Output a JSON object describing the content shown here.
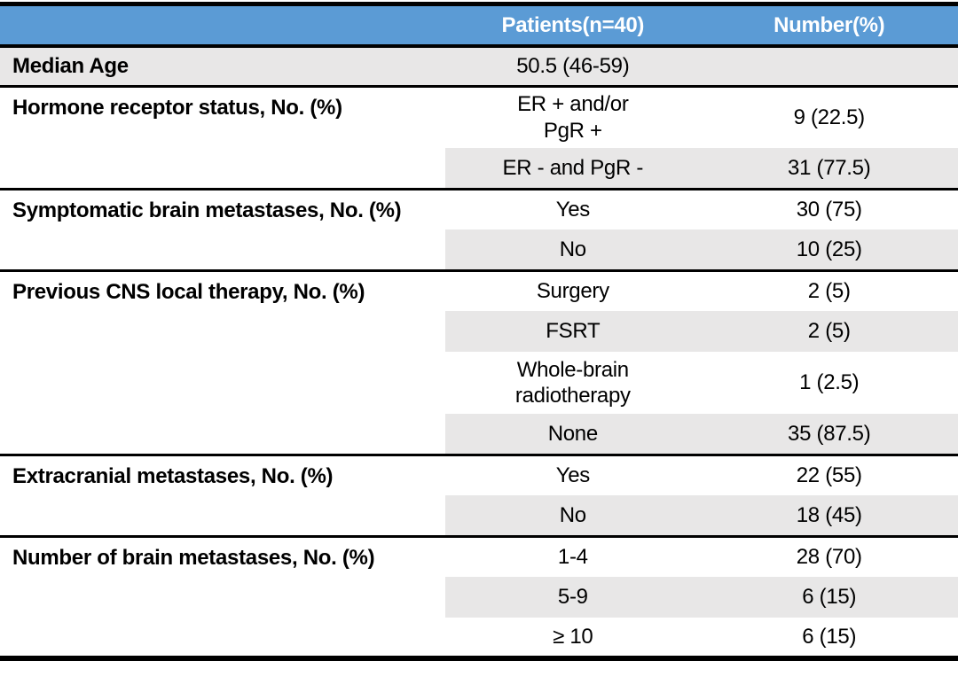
{
  "colors": {
    "header_bg": "#5b9bd5",
    "header_fg": "#ffffff",
    "shade": "#e8e7e7",
    "rule": "#000000"
  },
  "header": {
    "col_patients": "Patients(n=40)",
    "col_number": "Number(%)"
  },
  "table": {
    "median_row": {
      "label": "Median Age",
      "value": "50.5 (46-59)",
      "number": ""
    },
    "sections": [
      {
        "label": "Hormone receptor status, No. (%)",
        "rows": [
          {
            "option": "ER + and/or\nPgR +",
            "number": "9 (22.5)"
          },
          {
            "option": "ER - and PgR -",
            "number": "31 (77.5)"
          }
        ]
      },
      {
        "label": "Symptomatic brain metastases, No. (%)",
        "rows": [
          {
            "option": "Yes",
            "number": "30 (75)"
          },
          {
            "option": "No",
            "number": "10 (25)"
          }
        ]
      },
      {
        "label": "Previous CNS local therapy, No. (%)",
        "rows": [
          {
            "option": "Surgery",
            "number": "2 (5)"
          },
          {
            "option": "FSRT",
            "number": "2 (5)"
          },
          {
            "option": "Whole-brain\nradiotherapy",
            "number": "1 (2.5)"
          },
          {
            "option": "None",
            "number": "35 (87.5)"
          }
        ]
      },
      {
        "label": "Extracranial metastases, No. (%)",
        "rows": [
          {
            "option": "Yes",
            "number": "22 (55)"
          },
          {
            "option": "No",
            "number": "18 (45)"
          }
        ]
      },
      {
        "label": "Number of brain metastases, No. (%)",
        "rows": [
          {
            "option": "1-4",
            "number": "28 (70)"
          },
          {
            "option": "5-9",
            "number": "6 (15)"
          },
          {
            "option": "≥ 10",
            "number": "6 (15)"
          }
        ]
      }
    ]
  }
}
